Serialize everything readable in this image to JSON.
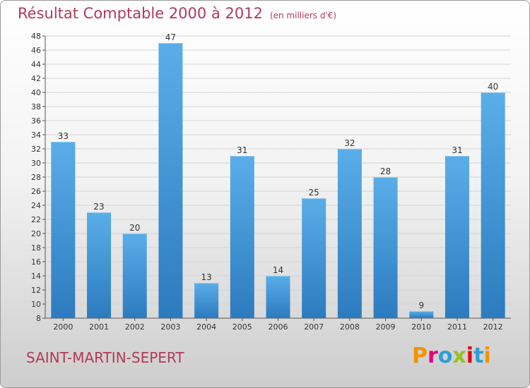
{
  "title": "Résultat Comptable 2000 à 2012",
  "title_unit": "(en milliers d'€)",
  "town": "SAINT-MARTIN-SEPERT",
  "logo": "Proxiti",
  "logo_colors": [
    "#f29400",
    "#e4007c",
    "#2aa0d8",
    "#95c11f",
    "#e30613",
    "#2aa0d8",
    "#f29400"
  ],
  "colors": {
    "title": "#b03a5b",
    "bar_top": "#5aaee8",
    "bar_bottom": "#2c7bbf",
    "grid": "#d4d4d4"
  },
  "chart_data": {
    "type": "bar",
    "title": "Résultat Comptable 2000 à 2012",
    "categories": [
      "2000",
      "2001",
      "2002",
      "2003",
      "2004",
      "2005",
      "2006",
      "2007",
      "2008",
      "2009",
      "2010",
      "2011",
      "2012"
    ],
    "values": [
      33,
      23,
      20,
      47,
      13,
      31,
      14,
      25,
      32,
      28,
      9,
      31,
      40
    ],
    "ylim": [
      8,
      48
    ],
    "yticks": [
      8,
      10,
      12,
      14,
      16,
      18,
      20,
      22,
      24,
      26,
      28,
      30,
      32,
      34,
      36,
      38,
      40,
      42,
      44,
      46,
      48
    ],
    "xlabel": "",
    "ylabel": "",
    "grid": true
  }
}
